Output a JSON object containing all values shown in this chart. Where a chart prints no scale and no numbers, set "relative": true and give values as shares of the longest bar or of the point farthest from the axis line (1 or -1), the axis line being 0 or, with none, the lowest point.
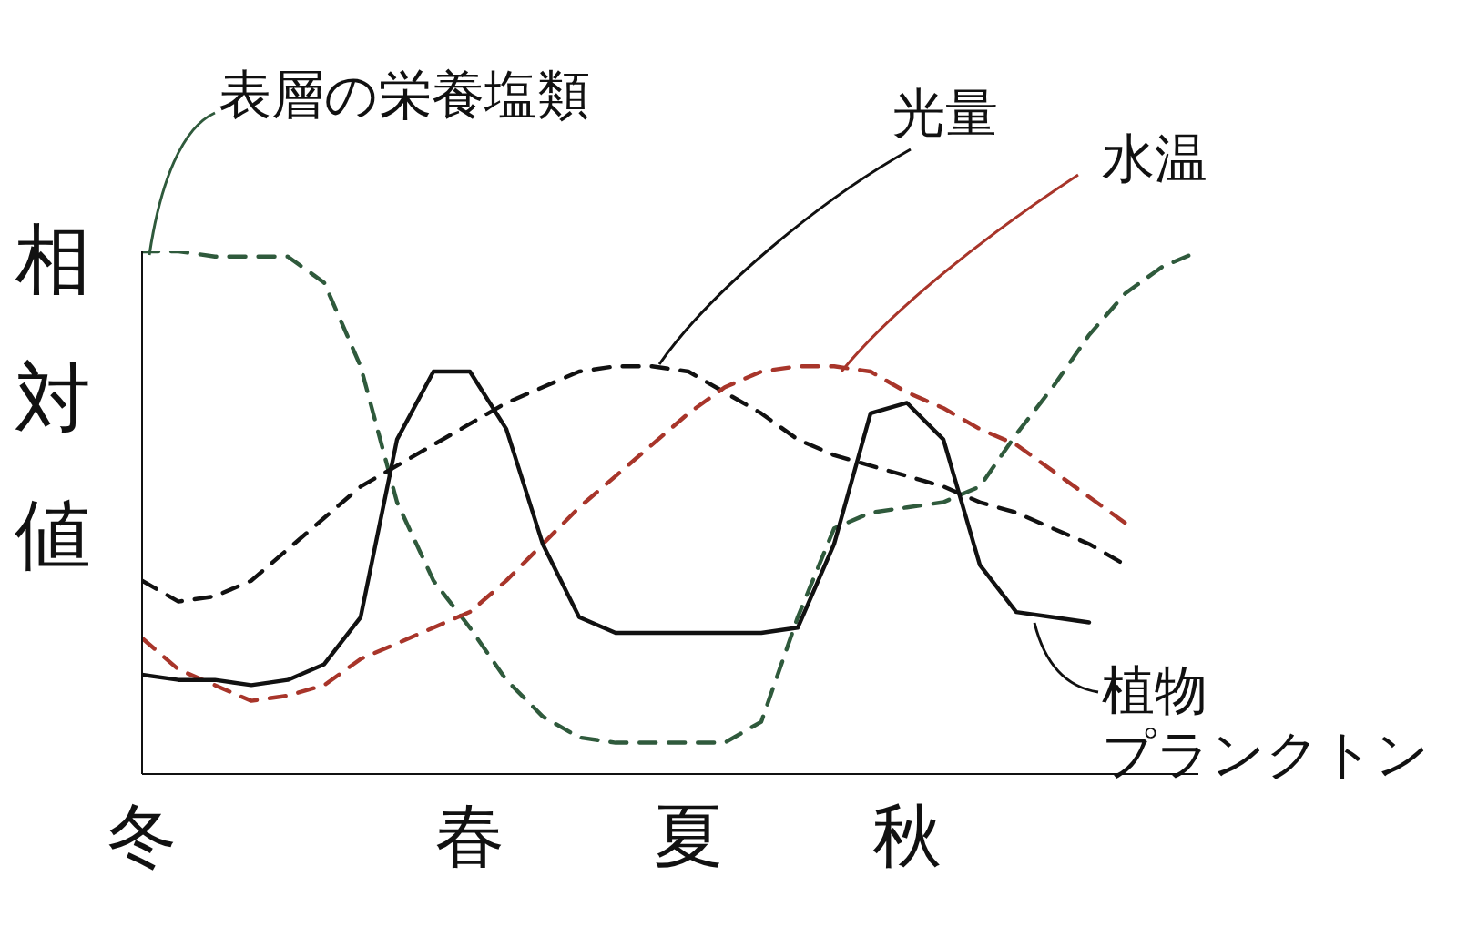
{
  "chart_data": {
    "type": "line",
    "relative": true,
    "ylabel": "相対値",
    "categories": [
      "冬",
      null,
      null,
      null,
      null,
      null,
      null,
      null,
      null,
      "春",
      null,
      null,
      null,
      null,
      null,
      "夏",
      null,
      null,
      null,
      null,
      null,
      "秋",
      null,
      null,
      null,
      null,
      null,
      null,
      null,
      null
    ],
    "series": [
      {
        "name": "表層の栄養塩類",
        "color": "#2f5a3c",
        "line_style": "dashed",
        "values": [
          1.0,
          1.0,
          0.99,
          0.99,
          0.99,
          0.94,
          0.78,
          0.52,
          0.37,
          0.28,
          0.18,
          0.11,
          0.07,
          0.06,
          0.06,
          0.06,
          0.06,
          0.1,
          0.3,
          0.47,
          0.5,
          0.51,
          0.52,
          0.55,
          0.65,
          0.74,
          0.84,
          0.92,
          0.97,
          1.0
        ]
      },
      {
        "name": "光量",
        "color": "#111111",
        "line_style": "dashed",
        "values": [
          0.37,
          0.33,
          0.34,
          0.37,
          0.43,
          0.49,
          0.55,
          0.59,
          0.63,
          0.67,
          0.71,
          0.74,
          0.77,
          0.78,
          0.78,
          0.77,
          0.73,
          0.69,
          0.64,
          0.61,
          0.59,
          0.57,
          0.55,
          0.52,
          0.5,
          0.47,
          0.44,
          0.4,
          null,
          null
        ]
      },
      {
        "name": "水温",
        "color": "#a8352a",
        "line_style": "dashed",
        "values": [
          0.26,
          0.2,
          0.17,
          0.14,
          0.15,
          0.17,
          0.22,
          0.25,
          0.28,
          0.31,
          0.37,
          0.44,
          0.51,
          0.57,
          0.63,
          0.69,
          0.74,
          0.77,
          0.78,
          0.78,
          0.77,
          0.73,
          0.7,
          0.66,
          0.63,
          0.58,
          0.53,
          0.48,
          null,
          null
        ]
      },
      {
        "name": "植物プランクトン",
        "color": "#111111",
        "line_style": "solid",
        "values": [
          0.19,
          0.18,
          0.18,
          0.17,
          0.18,
          0.21,
          0.3,
          0.64,
          0.77,
          0.77,
          0.66,
          0.44,
          0.3,
          0.27,
          0.27,
          0.27,
          0.27,
          0.27,
          0.28,
          0.44,
          0.69,
          0.71,
          0.64,
          0.4,
          0.31,
          0.3,
          0.29,
          null,
          null,
          null
        ]
      }
    ]
  }
}
